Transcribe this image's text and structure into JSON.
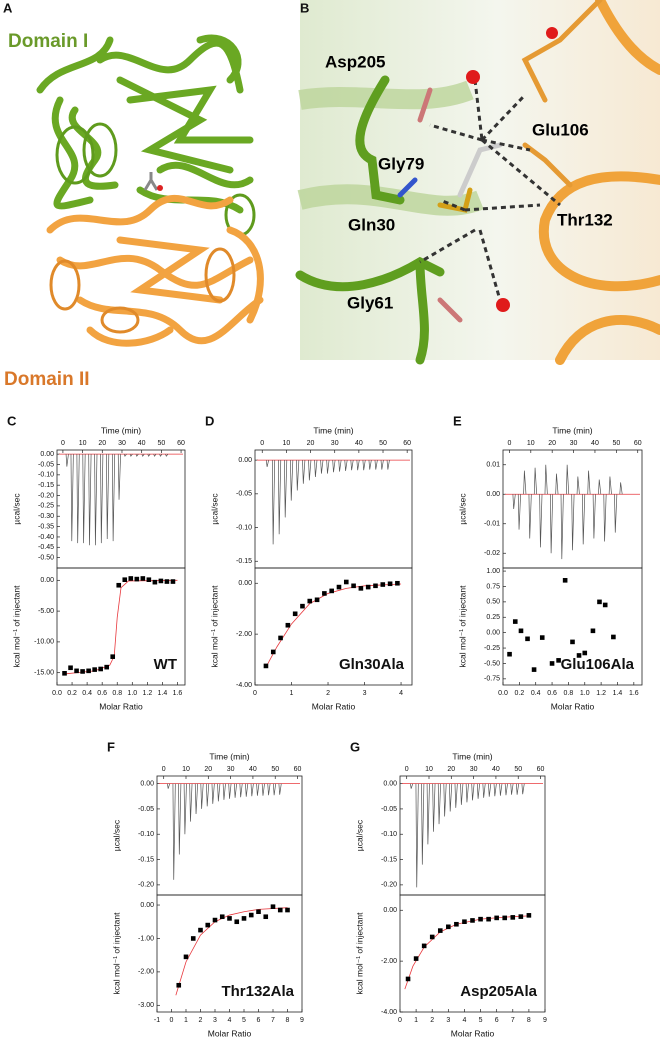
{
  "figure": {
    "panel_a": {
      "letter": "A",
      "domain_1": "Domain I",
      "domain_2": "Domain II"
    },
    "panel_b": {
      "letter": "B",
      "residues": [
        "Asp205",
        "Glu106",
        "Gly79",
        "Thr132",
        "Gln30",
        "Gly61"
      ]
    }
  },
  "chart_data": [
    {
      "type": "thermogram",
      "panel": "C",
      "xlabel": "Time (min)",
      "ylabel": "µcal/sec",
      "color": "#555555",
      "baseline_color": "#e8383d",
      "xlim": [
        -3,
        62
      ],
      "xticks": [
        0,
        10,
        20,
        30,
        40,
        50,
        60
      ],
      "ylim": [
        -0.55,
        0.02
      ],
      "yticks": [
        {
          "value": 0,
          "label": "0.00"
        },
        -0.05,
        {
          "value": -0.1,
          "label": "-0.10"
        },
        -0.15,
        {
          "value": -0.2,
          "label": "-0.20"
        },
        -0.25,
        {
          "value": -0.3,
          "label": "-0.30"
        },
        -0.35,
        {
          "value": -0.4,
          "label": "-0.40"
        },
        -0.45,
        {
          "value": -0.5,
          "label": "-0.50"
        }
      ],
      "x": [
        2,
        4.5,
        7.5,
        10.5,
        13.5,
        16.5,
        19.5,
        22.5,
        25.5,
        28.5,
        31.5,
        34.5,
        37.5,
        40.5,
        43.5,
        46.5,
        49.5,
        52.5
      ],
      "values": [
        -0.06,
        -0.42,
        -0.43,
        -0.43,
        -0.44,
        -0.44,
        -0.43,
        -0.41,
        -0.42,
        -0.22,
        -0.01,
        -0.01,
        -0.01,
        -0.01,
        -0.01,
        -0.01,
        -0.01,
        -0.01
      ]
    },
    {
      "type": "scatter",
      "annotation": "WT",
      "xlabel": "Molar Ratio",
      "ylabel": "kcal mol⁻¹ of injectant",
      "color": "#000000",
      "fit_color": "#e8383d",
      "xlim": [
        0,
        1.7
      ],
      "xticks": [
        {
          "value": 0,
          "label": "0.0"
        },
        0.2,
        0.4,
        0.6,
        0.8,
        {
          "value": 1,
          "label": "1.0"
        },
        1.2,
        1.4,
        1.6
      ],
      "ylim": [
        -17,
        2
      ],
      "yticks": [
        {
          "value": 0,
          "label": "0.00"
        },
        {
          "value": -5,
          "label": "-5.00"
        },
        {
          "value": -10,
          "label": "-10.00"
        },
        {
          "value": -15,
          "label": "-15.00"
        }
      ],
      "x": [
        0.1,
        0.18,
        0.26,
        0.34,
        0.42,
        0.5,
        0.58,
        0.66,
        0.74,
        0.82,
        0.9,
        0.98,
        1.06,
        1.14,
        1.22,
        1.3,
        1.38,
        1.46,
        1.54
      ],
      "values": [
        -15.1,
        -14.2,
        -14.7,
        -14.8,
        -14.7,
        -14.5,
        -14.4,
        -14.1,
        -12.4,
        -0.8,
        0.1,
        0.3,
        0.2,
        0.3,
        0.1,
        -0.3,
        -0.1,
        -0.2,
        -0.2
      ],
      "fit": {
        "x": [
          0.1,
          0.5,
          0.7,
          0.76,
          0.8,
          0.85,
          0.95,
          1.6
        ],
        "values": [
          -15.2,
          -14.7,
          -13.8,
          -12.3,
          -6,
          -1.2,
          -0.1,
          0
        ]
      }
    },
    {
      "type": "thermogram",
      "panel": "D",
      "xlabel": "Time (min)",
      "ylabel": "µcal/sec",
      "color": "#555555",
      "baseline_color": "#e8383d",
      "xlim": [
        -3,
        62
      ],
      "xticks": [
        0,
        10,
        20,
        30,
        40,
        50,
        60
      ],
      "ylim": [
        -0.16,
        0.015
      ],
      "yticks": [
        {
          "value": 0,
          "label": "0.00"
        },
        -0.05,
        {
          "value": -0.1,
          "label": "-0.10"
        },
        -0.15
      ],
      "x": [
        2,
        4.5,
        7,
        9.5,
        12,
        14.5,
        17,
        19.5,
        22,
        24.5,
        27,
        29.5,
        32,
        34.5,
        37,
        39.5,
        42,
        44.5,
        47,
        49.5,
        52
      ],
      "values": [
        -0.01,
        -0.125,
        -0.11,
        -0.085,
        -0.06,
        -0.045,
        -0.035,
        -0.03,
        -0.025,
        -0.02,
        -0.02,
        -0.018,
        -0.017,
        -0.016,
        -0.015,
        -0.015,
        -0.015,
        -0.014,
        -0.014,
        -0.014,
        -0.014
      ]
    },
    {
      "type": "scatter",
      "annotation": "Gln30Ala",
      "xlabel": "Molar Ratio",
      "ylabel": "kcal mol⁻¹ of injectant",
      "color": "#000000",
      "fit_color": "#e8383d",
      "xlim": [
        0,
        4.3
      ],
      "xticks": [
        0,
        1,
        2,
        3,
        4
      ],
      "ylim": [
        -4,
        0.6
      ],
      "yticks": [
        {
          "value": 0,
          "label": "0.00"
        },
        {
          "value": -2,
          "label": "-2.00"
        },
        {
          "value": -4,
          "label": "-4.00"
        }
      ],
      "x": [
        0.3,
        0.5,
        0.7,
        0.9,
        1.1,
        1.3,
        1.5,
        1.7,
        1.9,
        2.1,
        2.3,
        2.5,
        2.7,
        2.9,
        3.1,
        3.3,
        3.5,
        3.7,
        3.9
      ],
      "values": [
        -3.25,
        -2.7,
        -2.15,
        -1.65,
        -1.2,
        -0.9,
        -0.7,
        -0.65,
        -0.4,
        -0.3,
        -0.15,
        0.05,
        -0.1,
        -0.2,
        -0.15,
        -0.1,
        -0.05,
        -0.02,
        0
      ],
      "fit": {
        "x": [
          0.3,
          0.6,
          1,
          1.5,
          2,
          2.5,
          3,
          4
        ],
        "values": [
          -3.3,
          -2.5,
          -1.6,
          -0.8,
          -0.4,
          -0.2,
          -0.1,
          -0.03
        ]
      }
    },
    {
      "type": "thermogram",
      "panel": "E",
      "xlabel": "Time (min)",
      "ylabel": "µcal/sec",
      "color": "#555555",
      "baseline_color": "#e8383d",
      "xlim": [
        -3,
        62
      ],
      "xticks": [
        0,
        10,
        20,
        30,
        40,
        50,
        60
      ],
      "ylim": [
        -0.025,
        0.015
      ],
      "yticks": [
        0.01,
        {
          "value": 0,
          "label": "0.00"
        },
        -0.01,
        -0.02
      ],
      "x": [
        2,
        4.5,
        7,
        9.5,
        12,
        14.5,
        17,
        19.5,
        22,
        24.5,
        27,
        29.5,
        32,
        34.5,
        37,
        39.5,
        42,
        44.5,
        47,
        49.5,
        52
      ],
      "values": [
        -0.005,
        -0.012,
        0.008,
        -0.015,
        0.009,
        -0.018,
        0.01,
        -0.02,
        0.007,
        -0.022,
        0.01,
        -0.019,
        0.006,
        -0.017,
        0.008,
        -0.015,
        0.005,
        -0.016,
        0.006,
        -0.013,
        0.004
      ]
    },
    {
      "type": "scatter",
      "annotation": "Glu106Ala",
      "xlabel": "Molar Ratio",
      "ylabel": "kcal mol⁻¹ of injectant",
      "color": "#000000",
      "xlim": [
        0,
        1.7
      ],
      "xticks": [
        {
          "value": 0,
          "label": "0.0"
        },
        0.2,
        0.4,
        0.6,
        0.8,
        {
          "value": 1,
          "label": "1.0"
        },
        1.2,
        1.4,
        1.6
      ],
      "ylim": [
        -0.85,
        1.05
      ],
      "yticks": [
        {
          "value": 1,
          "label": "1.00"
        },
        0.75,
        {
          "value": 0.5,
          "label": "0.50"
        },
        0.25,
        {
          "value": 0,
          "label": "0.00"
        },
        -0.25,
        {
          "value": -0.5,
          "label": "-0.50"
        },
        -0.75
      ],
      "x": [
        0.08,
        0.15,
        0.22,
        0.3,
        0.38,
        0.48,
        0.6,
        0.68,
        0.76,
        0.85,
        0.93,
        1.0,
        1.1,
        1.18,
        1.25,
        1.35
      ],
      "values": [
        -0.35,
        0.18,
        0.03,
        -0.1,
        -0.6,
        -0.08,
        -0.5,
        -0.45,
        0.85,
        -0.15,
        -0.37,
        -0.33,
        0.03,
        0.5,
        0.45,
        -0.07
      ]
    },
    {
      "type": "thermogram",
      "panel": "F",
      "xlabel": "Time (min)",
      "ylabel": "µcal/sec",
      "color": "#555555",
      "baseline_color": "#e8383d",
      "xlim": [
        -3,
        62
      ],
      "xticks": [
        0,
        10,
        20,
        30,
        40,
        50,
        60
      ],
      "ylim": [
        -0.22,
        0.015
      ],
      "yticks": [
        {
          "value": 0,
          "label": "0.00"
        },
        -0.05,
        {
          "value": -0.1,
          "label": "-0.10"
        },
        -0.15,
        {
          "value": -0.2,
          "label": "-0.20"
        }
      ],
      "x": [
        2,
        4.5,
        7,
        9.5,
        12,
        14.5,
        17,
        19.5,
        22,
        24.5,
        27,
        29.5,
        32,
        34.5,
        37,
        39.5,
        42,
        44.5,
        47,
        49.5,
        52
      ],
      "values": [
        -0.01,
        -0.19,
        -0.14,
        -0.1,
        -0.075,
        -0.06,
        -0.05,
        -0.045,
        -0.04,
        -0.035,
        -0.032,
        -0.03,
        -0.028,
        -0.027,
        -0.026,
        -0.025,
        -0.024,
        -0.024,
        -0.023,
        -0.023,
        -0.022
      ]
    },
    {
      "type": "scatter",
      "annotation": "Thr132Ala",
      "xlabel": "Molar Ratio",
      "ylabel": "kcal mol⁻¹ of injectant",
      "color": "#000000",
      "fit_color": "#e8383d",
      "xlim": [
        -1,
        9
      ],
      "xticks": [
        -1,
        0,
        1,
        2,
        3,
        4,
        5,
        6,
        7,
        8,
        9
      ],
      "ylim": [
        -3.2,
        0.3
      ],
      "yticks": [
        {
          "value": 0,
          "label": "0.00"
        },
        {
          "value": -1,
          "label": "-1.00"
        },
        {
          "value": -2,
          "label": "-2.00"
        },
        {
          "value": -3,
          "label": "-3.00"
        }
      ],
      "x": [
        0.5,
        1,
        1.5,
        2,
        2.5,
        3,
        3.5,
        4,
        4.5,
        5,
        5.5,
        6,
        6.5,
        7,
        7.5,
        8
      ],
      "values": [
        -2.4,
        -1.55,
        -1.0,
        -0.75,
        -0.6,
        -0.45,
        -0.35,
        -0.4,
        -0.5,
        -0.4,
        -0.3,
        -0.2,
        -0.35,
        -0.05,
        -0.15,
        -0.15
      ],
      "fit": {
        "x": [
          0.3,
          1,
          2,
          3,
          4,
          5,
          6,
          8
        ],
        "values": [
          -2.7,
          -1.7,
          -0.9,
          -0.5,
          -0.3,
          -0.2,
          -0.13,
          -0.08
        ]
      }
    },
    {
      "type": "thermogram",
      "panel": "G",
      "xlabel": "Time (min)",
      "ylabel": "µcal/sec",
      "color": "#555555",
      "baseline_color": "#e8383d",
      "xlim": [
        -3,
        62
      ],
      "xticks": [
        0,
        10,
        20,
        30,
        40,
        50,
        60
      ],
      "ylim": [
        -0.22,
        0.015
      ],
      "yticks": [
        {
          "value": 0,
          "label": "0.00"
        },
        -0.05,
        {
          "value": -0.1,
          "label": "-0.10"
        },
        -0.15,
        {
          "value": -0.2,
          "label": "-0.20"
        }
      ],
      "x": [
        2,
        4.5,
        7,
        9.5,
        12,
        14.5,
        17,
        19.5,
        22,
        24.5,
        27,
        29.5,
        32,
        34.5,
        37,
        39.5,
        42,
        44.5,
        47,
        49.5,
        52
      ],
      "values": [
        -0.01,
        -0.205,
        -0.16,
        -0.12,
        -0.095,
        -0.08,
        -0.065,
        -0.055,
        -0.048,
        -0.042,
        -0.037,
        -0.033,
        -0.03,
        -0.028,
        -0.026,
        -0.025,
        -0.024,
        -0.023,
        -0.022,
        -0.022,
        -0.021
      ]
    },
    {
      "type": "scatter",
      "annotation": "Asp205Ala",
      "xlabel": "Molar Ratio",
      "ylabel": "kcal mol⁻¹ of injectant",
      "color": "#000000",
      "fit_color": "#e8383d",
      "xlim": [
        0,
        9
      ],
      "xticks": [
        0,
        1,
        2,
        3,
        4,
        5,
        6,
        7,
        8,
        9
      ],
      "ylim": [
        -4,
        0.6
      ],
      "yticks": [
        {
          "value": 0,
          "label": "0.00"
        },
        {
          "value": -2,
          "label": "-2.00"
        },
        {
          "value": -4,
          "label": "-4.00"
        }
      ],
      "x": [
        0.5,
        1,
        1.5,
        2,
        2.5,
        3,
        3.5,
        4,
        4.5,
        5,
        5.5,
        6,
        6.5,
        7,
        7.5,
        8
      ],
      "values": [
        -2.7,
        -1.9,
        -1.4,
        -1.05,
        -0.8,
        -0.65,
        -0.55,
        -0.45,
        -0.4,
        -0.35,
        -0.35,
        -0.3,
        -0.3,
        -0.28,
        -0.25,
        -0.2
      ],
      "fit": {
        "x": [
          0.3,
          0.8,
          1.5,
          2.5,
          3.5,
          5,
          6.5,
          8
        ],
        "values": [
          -3.1,
          -2.2,
          -1.45,
          -0.85,
          -0.55,
          -0.35,
          -0.27,
          -0.22
        ]
      }
    }
  ]
}
